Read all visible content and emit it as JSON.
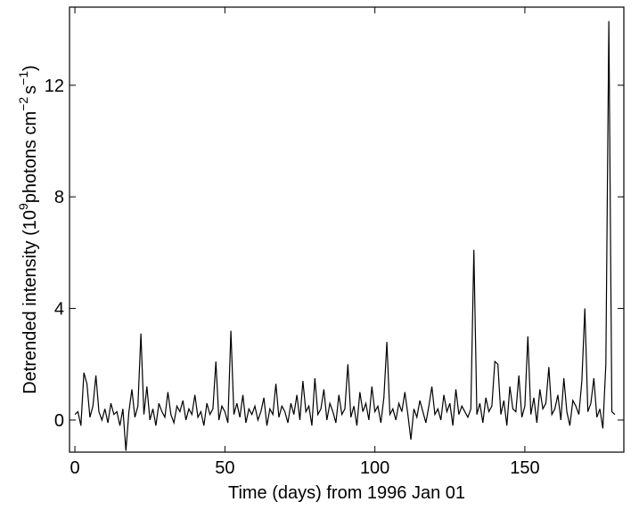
{
  "chart_data": {
    "type": "line",
    "xlabel": "Time (days) from 1996 Jan 01",
    "ylabel": [
      "Detrended intensity (10",
      "9",
      "photons cm",
      "−2",
      "s",
      "−1",
      ")"
    ],
    "x": [
      0,
      1,
      2,
      3,
      4,
      5,
      6,
      7,
      8,
      9,
      10,
      11,
      12,
      13,
      14,
      15,
      16,
      17,
      18,
      19,
      20,
      21,
      22,
      23,
      24,
      25,
      26,
      27,
      28,
      29,
      30,
      31,
      32,
      33,
      34,
      35,
      36,
      37,
      38,
      39,
      40,
      41,
      42,
      43,
      44,
      45,
      46,
      47,
      48,
      49,
      50,
      51,
      52,
      53,
      54,
      55,
      56,
      57,
      58,
      59,
      60,
      61,
      62,
      63,
      64,
      65,
      66,
      67,
      68,
      69,
      70,
      71,
      72,
      73,
      74,
      75,
      76,
      77,
      78,
      79,
      80,
      81,
      82,
      83,
      84,
      85,
      86,
      87,
      88,
      89,
      90,
      91,
      92,
      93,
      94,
      95,
      96,
      97,
      98,
      99,
      100,
      101,
      102,
      103,
      104,
      105,
      106,
      107,
      108,
      109,
      110,
      111,
      112,
      113,
      114,
      115,
      116,
      117,
      118,
      119,
      120,
      121,
      122,
      123,
      124,
      125,
      126,
      127,
      128,
      129,
      130,
      131,
      132,
      133,
      134,
      135,
      136,
      137,
      138,
      139,
      140,
      141,
      142,
      143,
      144,
      145,
      146,
      147,
      148,
      149,
      150,
      151,
      152,
      153,
      154,
      155,
      156,
      157,
      158,
      159,
      160,
      161,
      162,
      163,
      164,
      165,
      166,
      167,
      168,
      169,
      170,
      171,
      172,
      173,
      174,
      175,
      176,
      177,
      178,
      179,
      180
    ],
    "values": [
      0.2,
      0.3,
      -0.2,
      1.7,
      1.3,
      0.1,
      0.5,
      1.6,
      0.3,
      0.0,
      0.4,
      -0.1,
      0.6,
      0.2,
      0.3,
      -0.2,
      0.4,
      -1.1,
      0.3,
      1.1,
      0.1,
      0.5,
      3.1,
      0.2,
      1.2,
      0.0,
      0.4,
      -0.2,
      0.6,
      0.3,
      0.1,
      1.0,
      0.2,
      -0.1,
      0.5,
      0.3,
      0.7,
      0.0,
      0.4,
      0.2,
      0.9,
      0.1,
      0.3,
      -0.2,
      0.6,
      0.2,
      0.4,
      2.1,
      0.0,
      0.5,
      0.3,
      -0.1,
      3.2,
      0.2,
      0.6,
      0.1,
      0.9,
      -0.1,
      0.4,
      0.2,
      0.5,
      0.0,
      0.3,
      0.8,
      -0.2,
      0.4,
      0.2,
      1.3,
      0.1,
      0.5,
      0.3,
      -0.1,
      0.6,
      0.2,
      0.9,
      0.0,
      1.4,
      0.3,
      0.5,
      -0.2,
      1.5,
      0.2,
      0.4,
      1.1,
      0.0,
      0.6,
      0.3,
      -0.1,
      0.9,
      0.2,
      0.4,
      2.0,
      0.1,
      0.5,
      -0.2,
      1.0,
      0.3,
      0.6,
      0.0,
      1.2,
      0.3,
      0.5,
      -0.1,
      0.8,
      2.8,
      0.2,
      0.4,
      0.0,
      0.6,
      0.3,
      1.0,
      0.2,
      -0.7,
      0.4,
      0.1,
      0.7,
      0.3,
      -0.1,
      0.5,
      1.2,
      0.2,
      0.4,
      0.0,
      0.9,
      0.3,
      0.6,
      -0.2,
      1.1,
      0.2,
      0.5,
      0.3,
      0.1,
      0.4,
      6.1,
      0.2,
      0.6,
      -0.1,
      0.8,
      0.3,
      0.5,
      2.1,
      2.0,
      0.2,
      0.7,
      -0.2,
      1.2,
      0.4,
      0.3,
      1.6,
      0.1,
      0.5,
      3.0,
      0.2,
      0.8,
      -0.1,
      1.1,
      0.4,
      0.6,
      1.9,
      0.2,
      0.4,
      0.9,
      0.0,
      1.5,
      0.3,
      -0.2,
      0.7,
      0.5,
      0.2,
      1.4,
      4.0,
      0.3,
      0.6,
      1.5,
      0.1,
      0.4,
      -0.3,
      2.0,
      14.3,
      0.3,
      0.2
    ],
    "color": "#000000",
    "xlim": [
      -1.8,
      183
    ],
    "xticks": [
      0,
      50,
      100,
      150
    ],
    "ylim": [
      -1.15,
      14.8
    ],
    "yticks": [
      0,
      4,
      8,
      12
    ],
    "grid": false
  }
}
